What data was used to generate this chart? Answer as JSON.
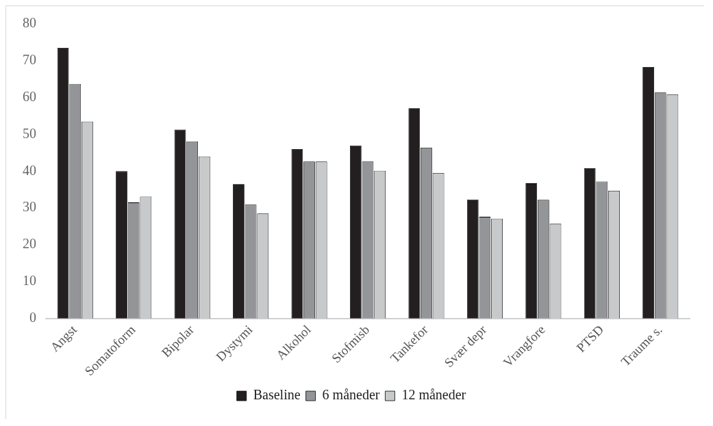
{
  "chart_data": {
    "type": "bar",
    "categories": [
      "Angst",
      "Somatoform",
      "Bipolar",
      "Dystymi",
      "Alkohol",
      "Stofmisb",
      "Tankefor",
      "Svær depr",
      "Vrangfore",
      "PTSD",
      "Traume s."
    ],
    "series": [
      {
        "name": "Baseline",
        "color": "#231f20",
        "values": [
          73.5,
          40.0,
          51.3,
          36.5,
          46.0,
          47.0,
          57.1,
          32.3,
          36.7,
          40.8,
          68.3
        ]
      },
      {
        "name": "6 måneder",
        "color": "#939598",
        "values": [
          63.7,
          31.5,
          48.1,
          30.9,
          42.6,
          42.6,
          46.4,
          27.6,
          32.2,
          37.2,
          61.4
        ]
      },
      {
        "name": "12 måneder",
        "color": "#c8c9cb",
        "values": [
          53.5,
          33.1,
          44.0,
          28.5,
          42.6,
          40.1,
          39.5,
          27.1,
          25.7,
          34.7,
          60.8
        ]
      }
    ],
    "ylim": [
      0,
      80
    ],
    "yticks": [
      0,
      10,
      20,
      30,
      40,
      50,
      60,
      70,
      80
    ],
    "grid": false,
    "legend": "bottom"
  }
}
